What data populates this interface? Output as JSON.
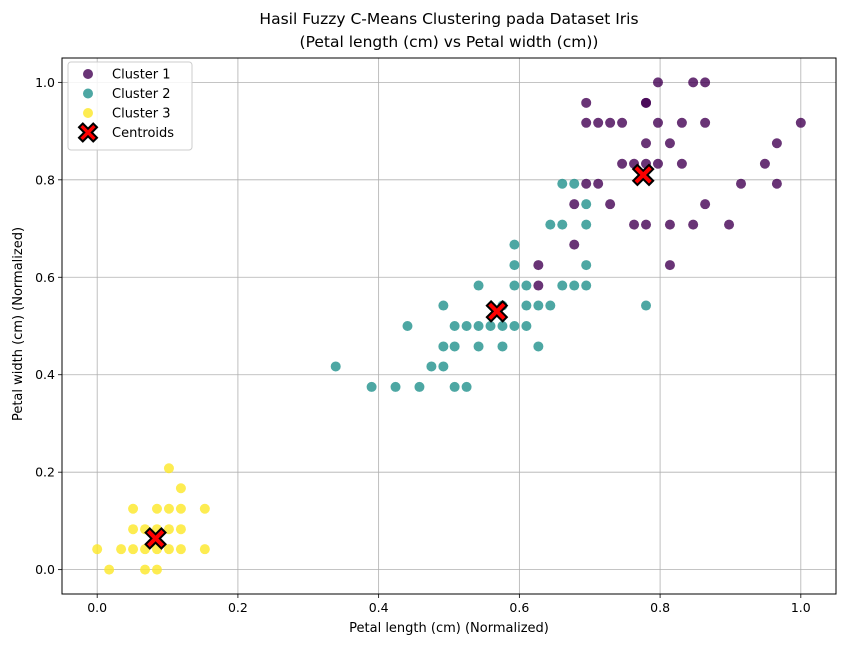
{
  "chart_data": {
    "type": "scatter",
    "title_line1": "Hasil Fuzzy C-Means Clustering pada Dataset Iris",
    "title_line2": "(Petal length (cm) vs Petal width (cm))",
    "xlabel": "Petal length (cm) (Normalized)",
    "ylabel": "Petal width (cm) (Normalized)",
    "xlim": [
      -0.05,
      1.05
    ],
    "ylim": [
      -0.05,
      1.05
    ],
    "xticks": [
      0.0,
      0.2,
      0.4,
      0.6,
      0.8,
      1.0
    ],
    "xtick_labels": [
      "0.0",
      "0.2",
      "0.4",
      "0.6",
      "0.8",
      "1.0"
    ],
    "yticks": [
      0.0,
      0.2,
      0.4,
      0.6,
      0.8,
      1.0
    ],
    "ytick_labels": [
      "0.0",
      "0.2",
      "0.4",
      "0.6",
      "0.8",
      "1.0"
    ],
    "grid": true,
    "legend_position": "top-left",
    "series": [
      {
        "name": "Cluster 1",
        "color": "#440154",
        "points": [
          [
            0.797,
            1.0
          ],
          [
            0.847,
            1.0
          ],
          [
            0.864,
            1.0
          ],
          [
            0.695,
            0.958
          ],
          [
            0.78,
            0.958
          ],
          [
            0.78,
            0.958
          ],
          [
            0.695,
            0.917
          ],
          [
            0.712,
            0.917
          ],
          [
            0.729,
            0.917
          ],
          [
            0.746,
            0.917
          ],
          [
            0.797,
            0.917
          ],
          [
            0.831,
            0.917
          ],
          [
            0.864,
            0.917
          ],
          [
            1.0,
            0.917
          ],
          [
            0.78,
            0.875
          ],
          [
            0.814,
            0.875
          ],
          [
            0.966,
            0.875
          ],
          [
            0.746,
            0.833
          ],
          [
            0.763,
            0.833
          ],
          [
            0.78,
            0.833
          ],
          [
            0.797,
            0.833
          ],
          [
            0.831,
            0.833
          ],
          [
            0.949,
            0.833
          ],
          [
            0.695,
            0.792
          ],
          [
            0.712,
            0.792
          ],
          [
            0.915,
            0.792
          ],
          [
            0.966,
            0.792
          ],
          [
            0.678,
            0.75
          ],
          [
            0.729,
            0.75
          ],
          [
            0.864,
            0.75
          ],
          [
            0.763,
            0.708
          ],
          [
            0.78,
            0.708
          ],
          [
            0.814,
            0.708
          ],
          [
            0.847,
            0.708
          ],
          [
            0.898,
            0.708
          ],
          [
            0.678,
            0.667
          ],
          [
            0.627,
            0.625
          ],
          [
            0.814,
            0.625
          ],
          [
            0.627,
            0.583
          ]
        ]
      },
      {
        "name": "Cluster 2",
        "color": "#21918c",
        "points": [
          [
            0.661,
            0.792
          ],
          [
            0.678,
            0.792
          ],
          [
            0.695,
            0.75
          ],
          [
            0.644,
            0.708
          ],
          [
            0.661,
            0.708
          ],
          [
            0.695,
            0.708
          ],
          [
            0.593,
            0.667
          ],
          [
            0.593,
            0.625
          ],
          [
            0.695,
            0.625
          ],
          [
            0.542,
            0.583
          ],
          [
            0.593,
            0.583
          ],
          [
            0.61,
            0.583
          ],
          [
            0.661,
            0.583
          ],
          [
            0.678,
            0.583
          ],
          [
            0.695,
            0.583
          ],
          [
            0.492,
            0.542
          ],
          [
            0.576,
            0.542
          ],
          [
            0.61,
            0.542
          ],
          [
            0.627,
            0.542
          ],
          [
            0.644,
            0.542
          ],
          [
            0.78,
            0.542
          ],
          [
            0.441,
            0.5
          ],
          [
            0.508,
            0.5
          ],
          [
            0.525,
            0.5
          ],
          [
            0.542,
            0.5
          ],
          [
            0.559,
            0.5
          ],
          [
            0.576,
            0.5
          ],
          [
            0.593,
            0.5
          ],
          [
            0.61,
            0.5
          ],
          [
            0.492,
            0.458
          ],
          [
            0.508,
            0.458
          ],
          [
            0.542,
            0.458
          ],
          [
            0.576,
            0.458
          ],
          [
            0.627,
            0.458
          ],
          [
            0.339,
            0.417
          ],
          [
            0.475,
            0.417
          ],
          [
            0.492,
            0.417
          ],
          [
            0.39,
            0.375
          ],
          [
            0.424,
            0.375
          ],
          [
            0.458,
            0.375
          ],
          [
            0.508,
            0.375
          ],
          [
            0.525,
            0.375
          ]
        ]
      },
      {
        "name": "Cluster 3",
        "color": "#fde725",
        "points": [
          [
            0.102,
            0.208
          ],
          [
            0.119,
            0.167
          ],
          [
            0.051,
            0.125
          ],
          [
            0.085,
            0.125
          ],
          [
            0.102,
            0.125
          ],
          [
            0.119,
            0.125
          ],
          [
            0.153,
            0.125
          ],
          [
            0.051,
            0.083
          ],
          [
            0.068,
            0.083
          ],
          [
            0.085,
            0.083
          ],
          [
            0.102,
            0.083
          ],
          [
            0.119,
            0.083
          ],
          [
            0.0,
            0.042
          ],
          [
            0.034,
            0.042
          ],
          [
            0.051,
            0.042
          ],
          [
            0.068,
            0.042
          ],
          [
            0.085,
            0.042
          ],
          [
            0.102,
            0.042
          ],
          [
            0.119,
            0.042
          ],
          [
            0.153,
            0.042
          ],
          [
            0.017,
            0.0
          ],
          [
            0.068,
            0.0
          ],
          [
            0.085,
            0.0
          ]
        ]
      }
    ],
    "centroids": {
      "name": "Centroids",
      "color": "#ff0000",
      "points": [
        [
          0.776,
          0.81
        ],
        [
          0.568,
          0.53
        ],
        [
          0.083,
          0.064
        ]
      ]
    }
  }
}
